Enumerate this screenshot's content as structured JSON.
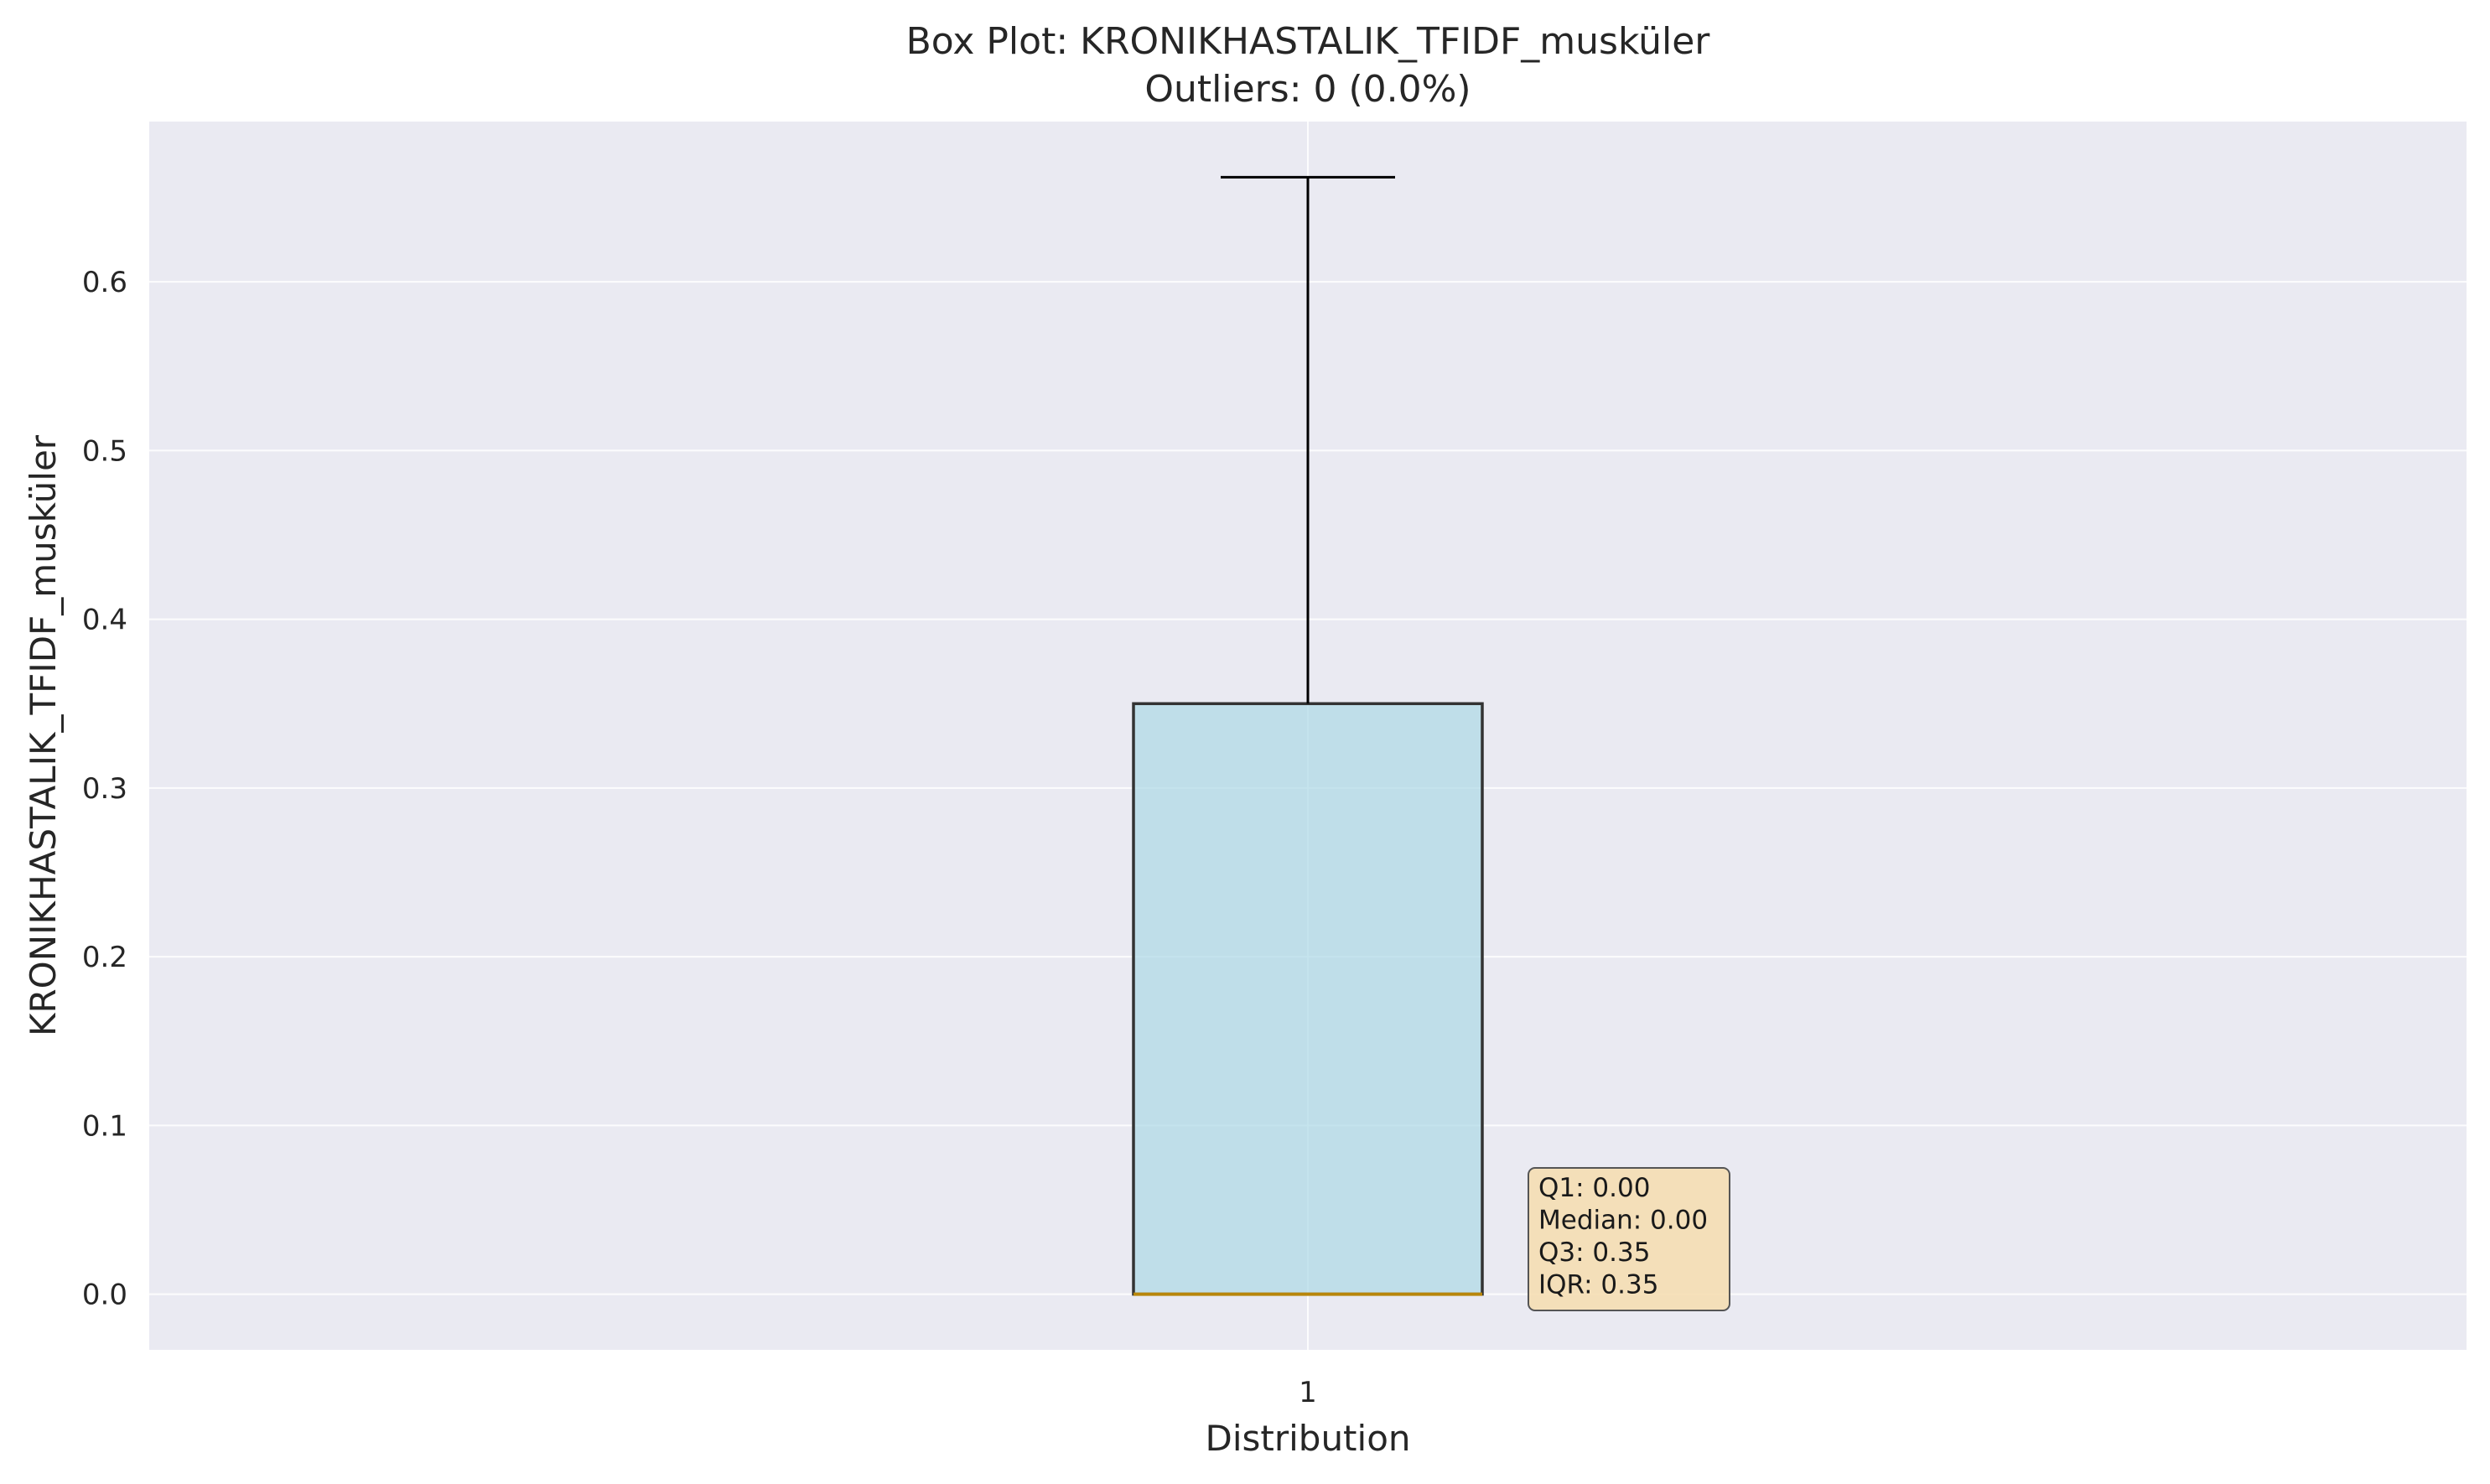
{
  "chart_data": {
    "type": "box",
    "title": "Box Plot: KRONIKHASTALIK_TFIDF_musküler",
    "subtitle": "Outliers: 0 (0.0%)",
    "xlabel": "Distribution",
    "ylabel": "KRONIKHASTALIK_TFIDF_musküler",
    "categories": [
      "1"
    ],
    "box": {
      "min": 0.0,
      "q1": 0.0,
      "median": 0.0,
      "q3": 0.35,
      "max": 0.662
    },
    "outliers": [],
    "ylim": [
      -0.033,
      0.695
    ],
    "yticks": [
      0.0,
      0.1,
      0.2,
      0.3,
      0.4,
      0.5,
      0.6
    ],
    "ytick_labels": [
      "0.0",
      "0.1",
      "0.2",
      "0.3",
      "0.4",
      "0.5",
      "0.6"
    ],
    "grid": true,
    "stats_box": [
      "Q1: 0.00",
      "Median: 0.00",
      "Q3: 0.35",
      "IQR: 0.35"
    ],
    "colors": {
      "plot_background": "#eaeaf2",
      "grid": "#ffffff",
      "box_fill": "#add8e6",
      "box_edge": "#333333",
      "median": "#b8860b",
      "whisker": "#000000",
      "stats_box_fill": "#f5deb3",
      "stats_box_edge": "#555555"
    }
  }
}
